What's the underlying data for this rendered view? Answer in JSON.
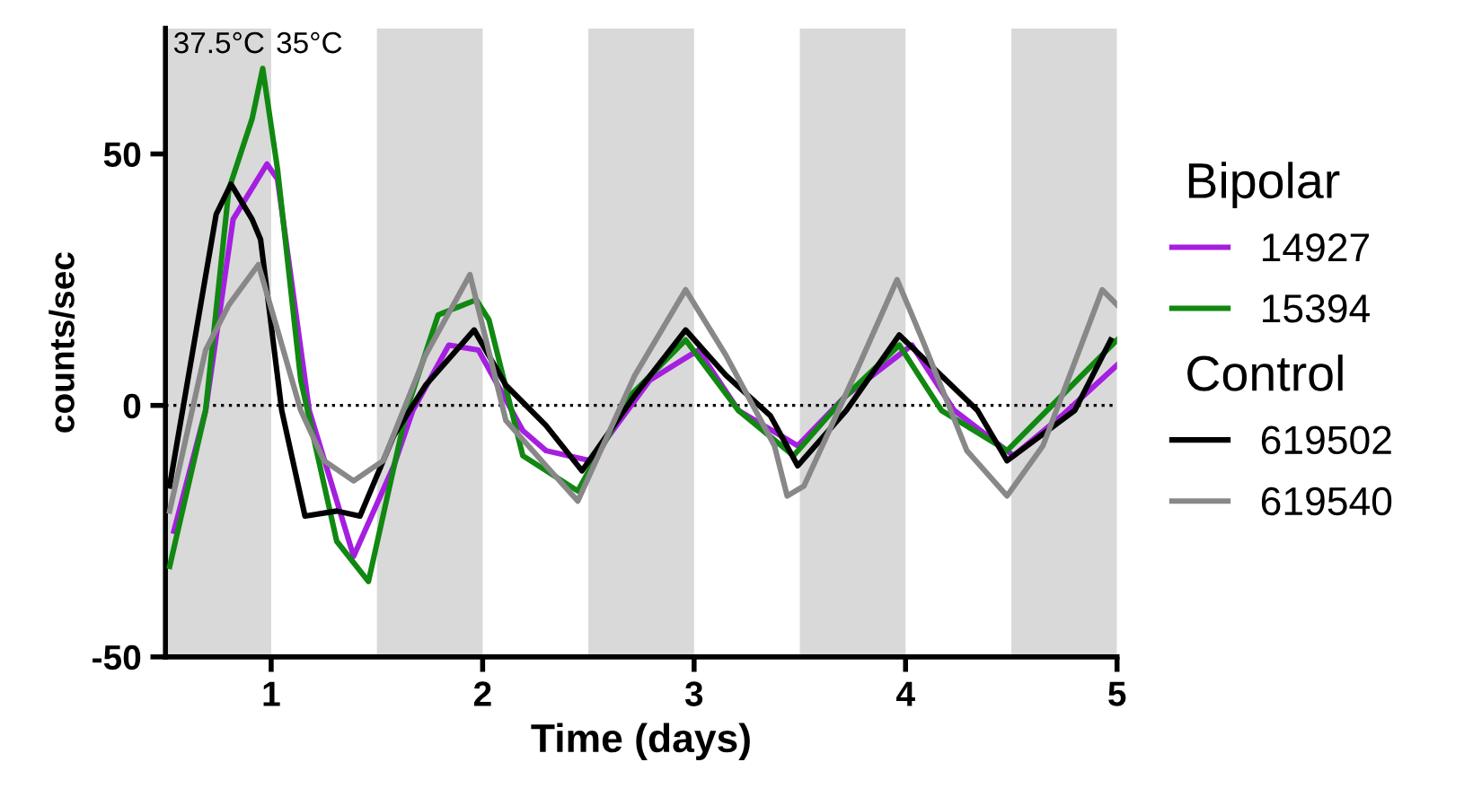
{
  "chart_data": {
    "type": "line",
    "xlabel": "Time (days)",
    "ylabel": "counts/sec",
    "xlim": [
      0.5,
      5
    ],
    "ylim": [
      -50,
      75
    ],
    "xticks": [
      1,
      2,
      3,
      4,
      5
    ],
    "yticks": [
      -50,
      0,
      50
    ],
    "grid": false,
    "legend": "right",
    "marker": "none",
    "line_style": "solid",
    "series": [
      {
        "name": "14927",
        "color": "#a51fe0",
        "x": [
          0.54,
          0.69,
          0.82,
          0.98,
          1.03,
          1.18,
          1.39,
          1.58,
          1.67,
          1.84,
          1.98,
          2.19,
          2.3,
          2.51,
          2.79,
          3.02,
          3.21,
          3.49,
          3.72,
          4.03,
          4.23,
          4.51,
          4.74,
          5.0
        ],
        "values": [
          -25,
          -1,
          37,
          48,
          45,
          -1,
          -30,
          -12,
          -1,
          12,
          11,
          -5,
          -9,
          -11,
          5,
          11,
          -1,
          -8,
          2,
          12,
          -1,
          -10,
          -2,
          8
        ]
      },
      {
        "name": "15394",
        "color": "#118811",
        "x": [
          0.52,
          0.69,
          0.8,
          0.91,
          0.96,
          1.03,
          1.14,
          1.31,
          1.46,
          1.64,
          1.79,
          1.97,
          2.03,
          2.19,
          2.45,
          2.7,
          2.96,
          3.21,
          3.47,
          3.72,
          3.97,
          4.17,
          4.48,
          4.74,
          5.0
        ],
        "values": [
          -32,
          -1,
          43,
          57,
          67,
          47,
          5,
          -27,
          -35,
          -1,
          18,
          21,
          17,
          -10,
          -17,
          2,
          13,
          -1,
          -10,
          2,
          12,
          -1,
          -9,
          2,
          13
        ]
      },
      {
        "name": "619502",
        "color": "#000000",
        "x": [
          0.52,
          0.63,
          0.74,
          0.81,
          0.91,
          0.95,
          1.05,
          1.16,
          1.31,
          1.42,
          1.58,
          1.73,
          1.96,
          2.11,
          2.3,
          2.47,
          2.72,
          2.96,
          3.15,
          3.36,
          3.49,
          3.72,
          3.97,
          4.34,
          4.48,
          4.8,
          4.97
        ],
        "values": [
          -16,
          11,
          38,
          44,
          37,
          33,
          -1,
          -22,
          -21,
          -22,
          -6,
          4,
          15,
          4,
          -4,
          -13,
          2,
          15,
          6,
          -2,
          -12,
          -1,
          14,
          -1,
          -11,
          -1,
          13
        ]
      },
      {
        "name": "619540",
        "color": "#888888",
        "x": [
          0.52,
          0.69,
          0.8,
          0.94,
          1.03,
          1.14,
          1.25,
          1.39,
          1.53,
          1.73,
          1.94,
          2.11,
          2.3,
          2.45,
          2.72,
          2.96,
          3.15,
          3.38,
          3.44,
          3.52,
          3.78,
          3.96,
          4.08,
          4.29,
          4.48,
          4.65,
          4.93,
          5.0
        ],
        "values": [
          -21,
          11,
          20,
          28,
          15,
          -1,
          -11,
          -15,
          -11,
          10,
          26,
          -3,
          -12,
          -19,
          6,
          23,
          10,
          -8,
          -18,
          -16,
          8,
          25,
          13,
          -9,
          -18,
          -8,
          23,
          20
        ]
      }
    ],
    "bands": [
      {
        "axis": "x",
        "from": 0.5,
        "to": 1,
        "color": "#d9d9d9"
      },
      {
        "axis": "x",
        "from": 1.5,
        "to": 2,
        "color": "#d9d9d9"
      },
      {
        "axis": "x",
        "from": 2.5,
        "to": 3,
        "color": "#d9d9d9"
      },
      {
        "axis": "x",
        "from": 3.5,
        "to": 4,
        "color": "#d9d9d9"
      },
      {
        "axis": "x",
        "from": 4.5,
        "to": 5,
        "color": "#d9d9d9"
      }
    ],
    "ref_lines": [
      {
        "axis": "y",
        "value": 0,
        "color": "#000000",
        "line_style": "dotted"
      }
    ],
    "annotations": [
      "37.5°C",
      "35°C",
      "Bipolar",
      "Control"
    ]
  }
}
